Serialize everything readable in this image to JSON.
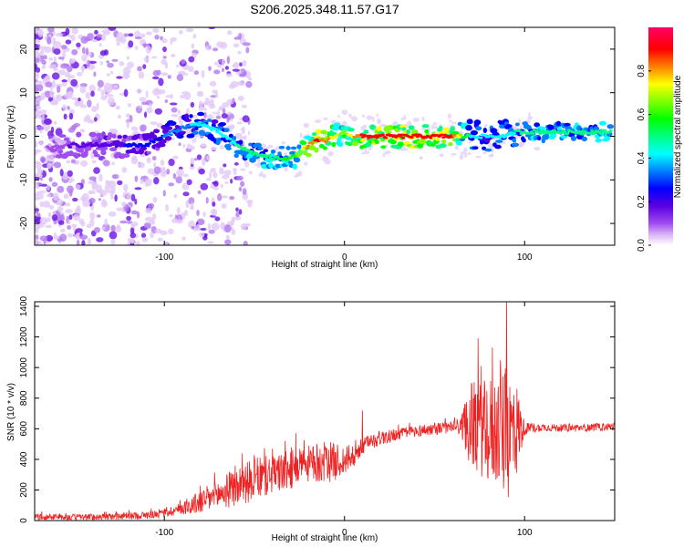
{
  "title": "S206.2025.348.11.57.G17",
  "chart_data": [
    {
      "type": "heatmap",
      "name": "spectrogram",
      "xlabel": "Height of straight line (km)",
      "ylabel": "Frequency (Hz)",
      "xlim": [
        -172,
        150
      ],
      "ylim": [
        -25,
        25
      ],
      "x_tick_labels": [
        "-100",
        "0",
        "100"
      ],
      "x_tick_values": [
        -100,
        0,
        100
      ],
      "y_tick_labels": [
        "20",
        "10",
        "0",
        "-10",
        "-20"
      ],
      "y_tick_values": [
        20,
        10,
        0,
        -10,
        -20
      ],
      "colorbar": {
        "label": "Normalized spectral amplitude",
        "range": [
          0,
          1
        ],
        "tick_labels": [
          "0.0",
          "0.2",
          "0.4",
          "0.6",
          "0.8"
        ],
        "tick_values": [
          0.0,
          0.2,
          0.4,
          0.6,
          0.8
        ],
        "colors": [
          "#ffffff",
          "#d9b3f5",
          "#a04df0",
          "#5a00e0",
          "#0000ff",
          "#0080ff",
          "#00ffff",
          "#00ff80",
          "#00ff00",
          "#80ff00",
          "#ffff00",
          "#ff8000",
          "#ff0000",
          "#ff0066"
        ]
      },
      "ridge": {
        "x": [
          -170,
          -150,
          -130,
          -110,
          -100,
          -90,
          -80,
          -70,
          -60,
          -50,
          -40,
          -30,
          -25,
          -20,
          -15,
          -10,
          -5,
          0,
          5,
          10,
          20,
          30,
          40,
          50,
          60,
          70,
          80,
          90,
          95,
          100,
          110,
          120,
          130,
          140,
          150
        ],
        "freq": [
          -3,
          -2,
          -2,
          -2,
          0,
          2,
          3,
          1,
          -2,
          -4,
          -5,
          -5,
          -4,
          -2,
          -1,
          -1,
          0,
          1,
          0,
          0,
          0,
          0,
          0,
          0,
          0,
          0,
          0,
          0,
          1,
          1,
          1,
          1,
          1,
          1,
          1
        ],
        "amplitude": [
          0.15,
          0.2,
          0.25,
          0.3,
          0.35,
          0.4,
          0.45,
          0.45,
          0.5,
          0.5,
          0.55,
          0.6,
          0.7,
          0.85,
          0.9,
          0.85,
          0.75,
          0.7,
          0.8,
          0.9,
          0.95,
          0.95,
          0.95,
          0.95,
          0.9,
          0.5,
          0.45,
          0.45,
          0.5,
          0.55,
          0.55,
          0.55,
          0.55,
          0.55,
          0.55
        ]
      }
    },
    {
      "type": "line",
      "name": "snr",
      "xlabel": "Height of straight line (km)",
      "ylabel": "SNR (10 * v/v)",
      "xlim": [
        -172,
        150
      ],
      "ylim": [
        0,
        1430
      ],
      "x_tick_labels": [
        "-100",
        "0",
        "100"
      ],
      "x_tick_values": [
        -100,
        0,
        100
      ],
      "y_tick_labels": [
        "0",
        "200",
        "400",
        "600",
        "800",
        "1000",
        "1200",
        "1400"
      ],
      "y_tick_values": [
        0,
        200,
        400,
        600,
        800,
        1000,
        1200,
        1400
      ],
      "series": [
        {
          "name": "SNR",
          "color": "#ee2222",
          "x": [
            -170,
            -150,
            -130,
            -110,
            -100,
            -90,
            -80,
            -70,
            -60,
            -50,
            -40,
            -30,
            -20,
            -10,
            0,
            5,
            10,
            15,
            20,
            30,
            40,
            50,
            60,
            65,
            70,
            75,
            80,
            85,
            90,
            95,
            100,
            110,
            120,
            130,
            140,
            150
          ],
          "baseline": [
            25,
            22,
            25,
            35,
            50,
            80,
            120,
            170,
            220,
            270,
            300,
            330,
            370,
            380,
            390,
            420,
            480,
            520,
            540,
            565,
            585,
            600,
            610,
            620,
            630,
            600,
            580,
            600,
            550,
            600,
            600,
            610,
            605,
            605,
            610,
            615
          ],
          "spread": [
            20,
            20,
            22,
            25,
            30,
            40,
            80,
            100,
            130,
            140,
            130,
            130,
            120,
            140,
            100,
            80,
            60,
            50,
            50,
            40,
            40,
            40,
            40,
            80,
            280,
            300,
            350,
            380,
            450,
            350,
            40,
            25,
            25,
            25,
            25,
            25
          ],
          "peaks": [
            {
              "x": 90,
              "y": 1430
            },
            {
              "x": 82,
              "y": 1130
            },
            {
              "x": 76,
              "y": 1010
            },
            {
              "x": 10,
              "y": 720
            },
            {
              "x": -27,
              "y": 570
            }
          ]
        }
      ]
    }
  ]
}
